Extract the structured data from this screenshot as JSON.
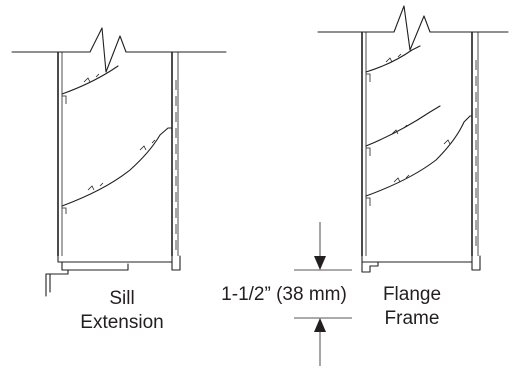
{
  "left_detail": {
    "label_line1": "Sill",
    "label_line2": "Extension"
  },
  "right_detail": {
    "label_line1": "Flange",
    "label_line2": "Frame"
  },
  "dimension": {
    "label": "1-1/2” (38 mm)"
  }
}
